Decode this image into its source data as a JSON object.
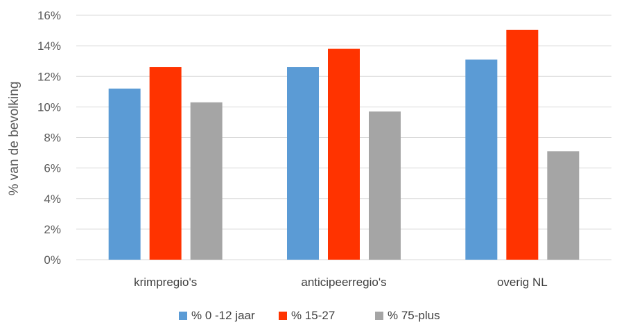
{
  "chart_data": {
    "type": "bar",
    "categories": [
      "krimpregio's",
      "anticipeerregio's",
      "overig NL"
    ],
    "series": [
      {
        "name": "% 0 -12 jaar",
        "values": [
          11.2,
          12.6,
          13.1
        ],
        "color": "#5b9bd5"
      },
      {
        "name": "% 15-27",
        "values": [
          12.6,
          13.8,
          15.05
        ],
        "color": "#ff3300"
      },
      {
        "name": "% 75-plus",
        "values": [
          10.3,
          9.7,
          7.1
        ],
        "color": "#a5a5a5"
      }
    ],
    "ylabel": "% van de bevolking",
    "ylim": [
      0,
      16
    ],
    "yticks": [
      0,
      2,
      4,
      6,
      8,
      10,
      12,
      14,
      16
    ],
    "ytick_labels": [
      "0%",
      "2%",
      "4%",
      "6%",
      "8%",
      "10%",
      "12%",
      "14%",
      "16%"
    ],
    "grid": true,
    "legend_position": "bottom"
  }
}
